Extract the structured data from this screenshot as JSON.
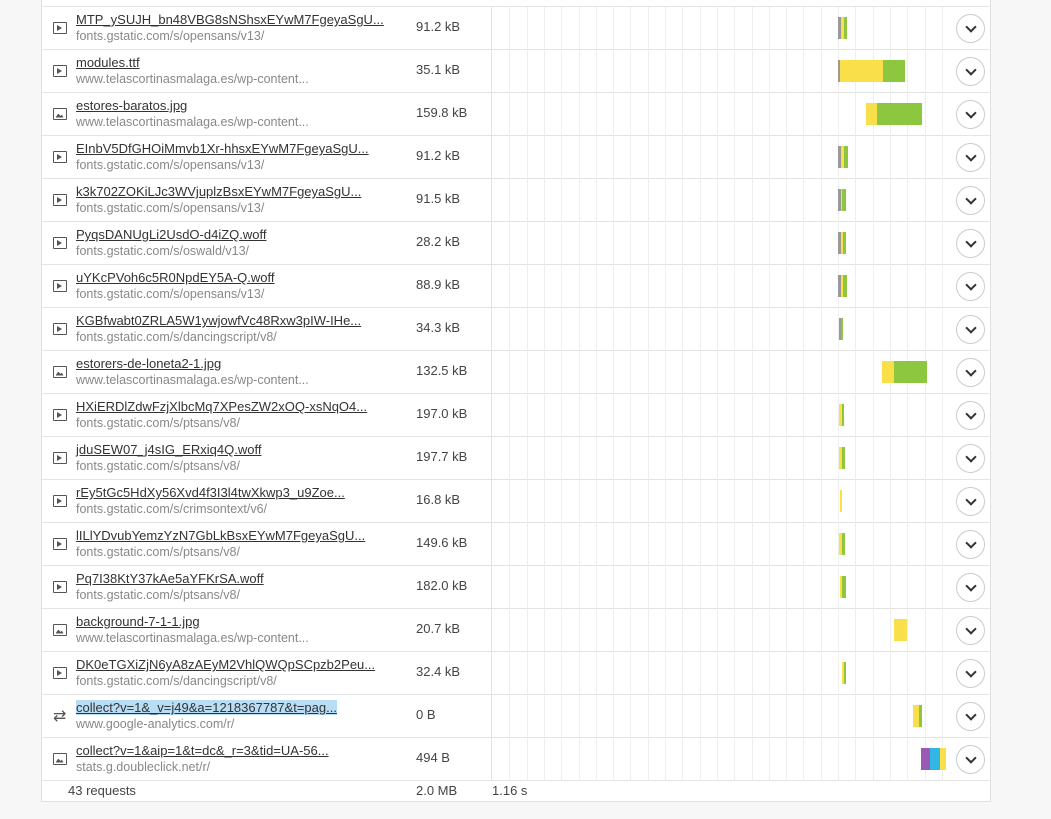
{
  "requests": [
    {
      "type": "play-icon",
      "name": "MTP_ySUJH_bn48VBG8sNShsxEYwM7FgeyaSgU...",
      "domain": "fonts.gstatic.com/s/opensans/v13/",
      "size": "91.2 kB",
      "segs": [
        {
          "s": 0.74,
          "e": 0.745,
          "c": "#999999"
        },
        {
          "s": 0.745,
          "e": 0.752,
          "c": "#f9e04b"
        },
        {
          "s": 0.752,
          "e": 0.758,
          "c": "#8dc63f"
        }
      ]
    },
    {
      "type": "play-icon",
      "name": "modules.ttf",
      "domain": "www.telascortinasmalaga.es/wp-content...",
      "size": "35.1 kB",
      "segs": [
        {
          "s": 0.74,
          "e": 0.744,
          "c": "#999999"
        },
        {
          "s": 0.744,
          "e": 0.835,
          "c": "#f9e04b"
        },
        {
          "s": 0.835,
          "e": 0.882,
          "c": "#8dc63f"
        }
      ]
    },
    {
      "type": "image-icon",
      "name": "estores-baratos.jpg",
      "domain": "www.telascortinasmalaga.es/wp-content...",
      "size": "159.8 kB",
      "segs": [
        {
          "s": 0.8,
          "e": 0.823,
          "c": "#f9e04b"
        },
        {
          "s": 0.823,
          "e": 0.918,
          "c": "#8dc63f"
        }
      ]
    },
    {
      "type": "play-icon",
      "name": "EInbV5DfGHOiMmvb1Xr-hhsxEYwM7FgeyaSgU...",
      "domain": "fonts.gstatic.com/s/opensans/v13/",
      "size": "91.2 kB",
      "segs": [
        {
          "s": 0.74,
          "e": 0.745,
          "c": "#999999"
        },
        {
          "s": 0.745,
          "e": 0.753,
          "c": "#f9e04b"
        },
        {
          "s": 0.753,
          "e": 0.76,
          "c": "#8dc63f"
        }
      ]
    },
    {
      "type": "play-icon",
      "name": "k3k702ZOKiLJc3WVjuplzBsxEYwM7FgeyaSgU...",
      "domain": "fonts.gstatic.com/s/opensans/v13/",
      "size": "91.5 kB",
      "segs": [
        {
          "s": 0.74,
          "e": 0.745,
          "c": "#999999"
        },
        {
          "s": 0.745,
          "e": 0.748,
          "c": "#f9e04b"
        },
        {
          "s": 0.748,
          "e": 0.757,
          "c": "#8dc63f"
        }
      ]
    },
    {
      "type": "play-icon",
      "name": "PyqsDANUgLi2UsdO-d4iZQ.woff",
      "domain": "fonts.gstatic.com/s/oswald/v13/",
      "size": "28.2 kB",
      "segs": [
        {
          "s": 0.74,
          "e": 0.745,
          "c": "#999999"
        },
        {
          "s": 0.745,
          "e": 0.751,
          "c": "#f9e04b"
        },
        {
          "s": 0.751,
          "e": 0.757,
          "c": "#8dc63f"
        }
      ]
    },
    {
      "type": "play-icon",
      "name": "uYKcPVoh6c5R0NpdEY5A-Q.woff",
      "domain": "fonts.gstatic.com/s/opensans/v13/",
      "size": "88.9 kB",
      "segs": [
        {
          "s": 0.74,
          "e": 0.745,
          "c": "#999999"
        },
        {
          "s": 0.745,
          "e": 0.75,
          "c": "#f9e04b"
        },
        {
          "s": 0.75,
          "e": 0.758,
          "c": "#8dc63f"
        }
      ]
    },
    {
      "type": "play-icon",
      "name": "KGBfwabt0ZRLA5W1ywjowfVc48Rxw3pIW-IHe...",
      "domain": "fonts.gstatic.com/s/dancingscript/v8/",
      "size": "34.3 kB",
      "segs": [
        {
          "s": 0.742,
          "e": 0.746,
          "c": "#999999"
        },
        {
          "s": 0.746,
          "e": 0.751,
          "c": "#8dc63f"
        }
      ]
    },
    {
      "type": "image-icon",
      "name": "estorers-de-loneta2-1.jpg",
      "domain": "www.telascortinasmalaga.es/wp-content...",
      "size": "132.5 kB",
      "segs": [
        {
          "s": 0.834,
          "e": 0.858,
          "c": "#f9e04b"
        },
        {
          "s": 0.858,
          "e": 0.93,
          "c": "#8dc63f"
        }
      ]
    },
    {
      "type": "play-icon",
      "name": "HXiERDlZdwFzjXlbcMq7XPesZW2xOQ-xsNqO4...",
      "domain": "fonts.gstatic.com/s/ptsans/v8/",
      "size": "197.0 kB",
      "segs": [
        {
          "s": 0.742,
          "e": 0.747,
          "c": "#f9e04b"
        },
        {
          "s": 0.747,
          "e": 0.753,
          "c": "#8dc63f"
        }
      ]
    },
    {
      "type": "play-icon",
      "name": "jduSEW07_j4sIG_ERxiq4Q.woff",
      "domain": "fonts.gstatic.com/s/ptsans/v8/",
      "size": "197.7 kB",
      "segs": [
        {
          "s": 0.742,
          "e": 0.747,
          "c": "#f9e04b"
        },
        {
          "s": 0.747,
          "e": 0.754,
          "c": "#8dc63f"
        }
      ]
    },
    {
      "type": "play-icon",
      "name": "rEy5tGc5HdXy56Xvd4f3I3l4twXkwp3_u9Zoe...",
      "domain": "fonts.gstatic.com/s/crimsontext/v6/",
      "size": "16.8 kB",
      "segs": [
        {
          "s": 0.743,
          "e": 0.747,
          "c": "#f9e04b"
        }
      ]
    },
    {
      "type": "play-icon",
      "name": "lILlYDvubYemzYzN7GbLkBsxEYwM7FgeyaSgU...",
      "domain": "fonts.gstatic.com/s/ptsans/v8/",
      "size": "149.6 kB",
      "segs": [
        {
          "s": 0.742,
          "e": 0.747,
          "c": "#f9e04b"
        },
        {
          "s": 0.747,
          "e": 0.755,
          "c": "#8dc63f"
        }
      ]
    },
    {
      "type": "play-icon",
      "name": "Pq7I38KtY37kAe5aYFKrSA.woff",
      "domain": "fonts.gstatic.com/s/ptsans/v8/",
      "size": "182.0 kB",
      "segs": [
        {
          "s": 0.743,
          "e": 0.748,
          "c": "#f9e04b"
        },
        {
          "s": 0.748,
          "e": 0.756,
          "c": "#8dc63f"
        }
      ]
    },
    {
      "type": "image-icon",
      "name": "background-7-1-1.jpg",
      "domain": "www.telascortinasmalaga.es/wp-content...",
      "size": "20.7 kB",
      "segs": [
        {
          "s": 0.858,
          "e": 0.886,
          "c": "#f9e04b"
        }
      ]
    },
    {
      "type": "play-icon",
      "name": "DK0eTGXiZjN6yA8zAEyM2VhlQWQpSCpzb2Peu...",
      "domain": "fonts.gstatic.com/s/dancingscript/v8/",
      "size": "32.4 kB",
      "segs": [
        {
          "s": 0.748,
          "e": 0.752,
          "c": "#f9e04b"
        },
        {
          "s": 0.752,
          "e": 0.755,
          "c": "#8dc63f"
        }
      ]
    },
    {
      "type": "redirect-icon",
      "name": "collect?v=1&_v=j49&a=1218367787&t=pag...",
      "domain": "www.google-analytics.com/r/",
      "size": "0 B",
      "selected": true,
      "segs": [
        {
          "s": 0.9,
          "e": 0.913,
          "c": "#f9e04b"
        },
        {
          "s": 0.913,
          "e": 0.918,
          "c": "#8dc63f"
        }
      ]
    },
    {
      "type": "image-icon",
      "name": "collect?v=1&aip=1&t=dc&_r=3&tid=UA-56...",
      "domain": "stats.g.doubleclick.net/r/",
      "size": "494 B",
      "segs": [
        {
          "s": 0.917,
          "e": 0.935,
          "c": "#9b59b6"
        },
        {
          "s": 0.935,
          "e": 0.958,
          "c": "#33b5e5"
        },
        {
          "s": 0.958,
          "e": 0.97,
          "c": "#f9e04b"
        }
      ]
    }
  ],
  "footer": {
    "requests": "43 requests",
    "total_size": "2.0 MB",
    "total_time": "1.16 s"
  },
  "colors": {
    "wait": "#f9e04b",
    "receive": "#8dc63f",
    "dns": "#9b59b6",
    "connect": "#33b5e5",
    "blocked": "#999999"
  }
}
